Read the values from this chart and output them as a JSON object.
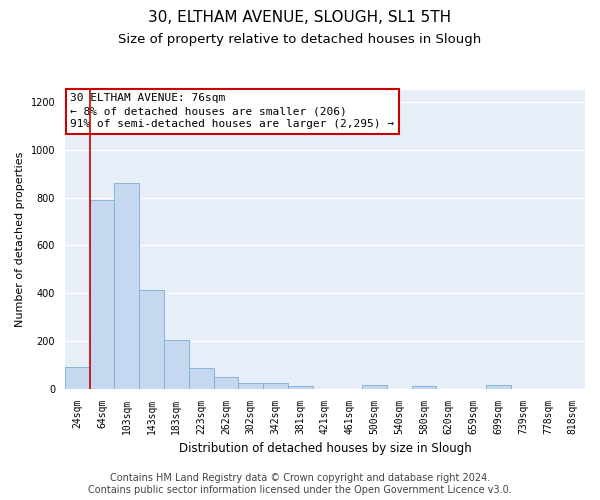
{
  "title1": "30, ELTHAM AVENUE, SLOUGH, SL1 5TH",
  "title2": "Size of property relative to detached houses in Slough",
  "xlabel": "Distribution of detached houses by size in Slough",
  "ylabel": "Number of detached properties",
  "annotation_line1": "30 ELTHAM AVENUE: 76sqm",
  "annotation_line2": "← 8% of detached houses are smaller (206)",
  "annotation_line3": "91% of semi-detached houses are larger (2,295) →",
  "bin_labels": [
    "24sqm",
    "64sqm",
    "103sqm",
    "143sqm",
    "183sqm",
    "223sqm",
    "262sqm",
    "302sqm",
    "342sqm",
    "381sqm",
    "421sqm",
    "461sqm",
    "500sqm",
    "540sqm",
    "580sqm",
    "620sqm",
    "659sqm",
    "699sqm",
    "739sqm",
    "778sqm",
    "818sqm"
  ],
  "bar_heights": [
    90,
    790,
    860,
    415,
    205,
    85,
    50,
    25,
    22,
    10,
    0,
    0,
    15,
    0,
    10,
    0,
    0,
    15,
    0,
    0,
    0
  ],
  "bar_color": "#c5d8ef",
  "bar_edge_color": "#7aadd4",
  "vline_color": "#cc0000",
  "vline_x": 0.5,
  "ylim": [
    0,
    1250
  ],
  "yticks": [
    0,
    200,
    400,
    600,
    800,
    1000,
    1200
  ],
  "annotation_box_facecolor": "#ffffff",
  "annotation_box_edge": "#cc0000",
  "footer_line1": "Contains HM Land Registry data © Crown copyright and database right 2024.",
  "footer_line2": "Contains public sector information licensed under the Open Government Licence v3.0.",
  "fig_bg_color": "#ffffff",
  "plot_bg_color": "#e8eef7",
  "title1_fontsize": 11,
  "title2_fontsize": 9.5,
  "xlabel_fontsize": 8.5,
  "ylabel_fontsize": 8,
  "tick_fontsize": 7,
  "footer_fontsize": 7,
  "annotation_fontsize": 8
}
